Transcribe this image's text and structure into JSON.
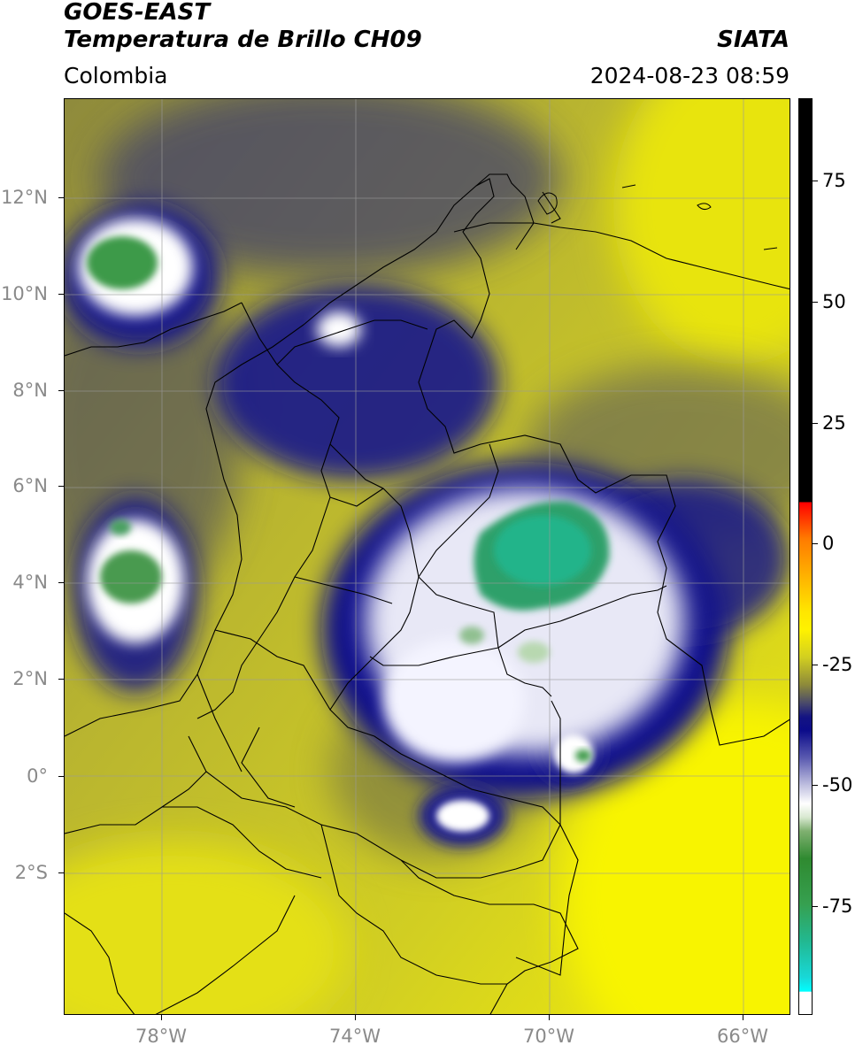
{
  "header": {
    "title_line1": "GOES-EAST",
    "title_line2": "Temperatura de Brillo CH09",
    "region": "Colombia",
    "source": "SIATA",
    "datetime": "2024-08-23 08:59"
  },
  "map": {
    "lat_labels": [
      "12°N",
      "10°N",
      "8°N",
      "6°N",
      "4°N",
      "2°N",
      "0°",
      "2°S"
    ],
    "lon_labels": [
      "78°W",
      "74°W",
      "70°W",
      "66°W"
    ],
    "colors": {
      "warm_yellow": "#e6e600",
      "olive": "#b6b236",
      "dark_olive": "#6d6a3c",
      "deep_blue": "#10108a",
      "white_cloud": "#ffffff",
      "green_core": "#2f9a4a",
      "teal_core": "#26b48c",
      "border_line": "#000000",
      "grid_line": "#9a9a9a"
    }
  },
  "colorbar": {
    "tick_labels": [
      "75",
      "50",
      "25",
      "0",
      "-25",
      "-50",
      "-75"
    ]
  }
}
